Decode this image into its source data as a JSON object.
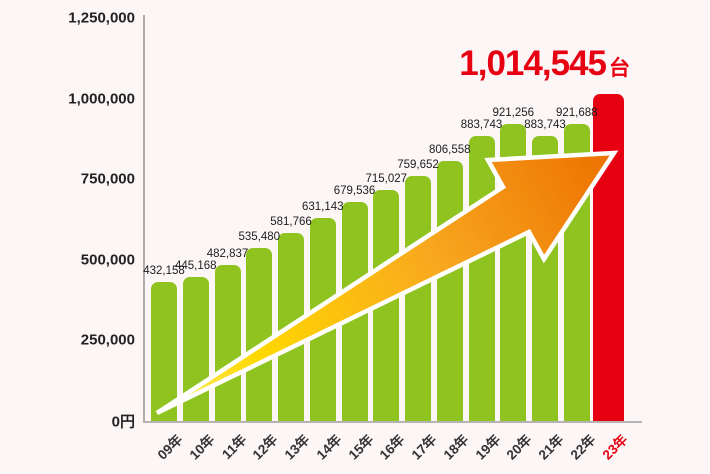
{
  "headline": {
    "value": "1,014,545",
    "unit": "台"
  },
  "colors": {
    "background": "#fcf6f6",
    "bar_green": "#8fc31f",
    "bar_red": "#e60012",
    "headline_red": "#e60012",
    "axis_gray": "#adadad",
    "label_dark": "#1d1d1d",
    "arrow_yellow": "#ffe45e",
    "arrow_orange": "#ed7000",
    "arrow_outline": "#ffffff"
  },
  "chart_data": {
    "type": "bar",
    "title": "1,014,545台",
    "xlabel": "",
    "ylabel": "",
    "ylim": [
      0,
      1250000
    ],
    "grid": false,
    "legend": "none",
    "categories": [
      "09年",
      "10年",
      "11年",
      "12年",
      "13年",
      "14年",
      "15年",
      "16年",
      "17年",
      "18年",
      "19年",
      "20年",
      "21年",
      "22年",
      "23年"
    ],
    "values": [
      432158,
      445168,
      482837,
      535480,
      581766,
      631143,
      679536,
      715027,
      759652,
      806558,
      883743,
      921256,
      883743,
      921688,
      1014545
    ],
    "value_labels": [
      "432,158",
      "445,168",
      "482,837",
      "535,480",
      "581,766",
      "631,143",
      "679,536",
      "715,027",
      "759,652",
      "806,558",
      "883,743",
      "921,256",
      "883,743",
      "921,688"
    ],
    "highlight_index": 14,
    "highlight_value_label": "1,014,545台",
    "y_ticks": [
      "1,250,000",
      "1,000,000",
      "750,000",
      "500,000",
      "250,000",
      "0円"
    ],
    "annotation": "rising growth arrow from first bar to last bar"
  }
}
